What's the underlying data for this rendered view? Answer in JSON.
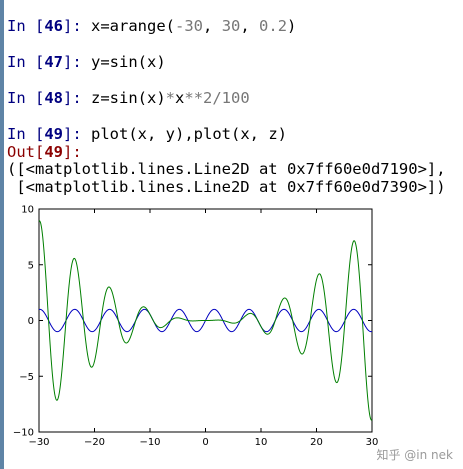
{
  "cells": [
    {
      "id": 1,
      "prompt": "In [",
      "number": "46",
      "suffix": "]:",
      "code": [
        {
          "t": "x=arange(",
          "c": ""
        },
        {
          "t": "-30",
          "c": "lit"
        },
        {
          "t": ", ",
          "c": ""
        },
        {
          "t": "30",
          "c": "lit"
        },
        {
          "t": ", ",
          "c": ""
        },
        {
          "t": "0.2",
          "c": "lit"
        },
        {
          "t": ")",
          "c": ""
        }
      ]
    },
    {
      "id": 2,
      "prompt": "In [",
      "number": "47",
      "suffix": "]:",
      "code": [
        {
          "t": "y=sin(x)",
          "c": ""
        }
      ]
    },
    {
      "id": 3,
      "prompt": "In [",
      "number": "48",
      "suffix": "]:",
      "code": [
        {
          "t": "z=sin(x)",
          "c": ""
        },
        {
          "t": "*",
          "c": "lit"
        },
        {
          "t": "x",
          "c": ""
        },
        {
          "t": "**2/100",
          "c": "lit"
        }
      ]
    },
    {
      "id": 4,
      "prompt": "In [",
      "number": "49",
      "suffix": "]:",
      "code": [
        {
          "t": "plot(x, y),plot(x, z)",
          "c": ""
        }
      ]
    }
  ],
  "output": {
    "prompt": "Out[",
    "number": "49",
    "suffix": "]:",
    "lines": [
      "([<matplotlib.lines.Line2D at 0x7ff60e0d7190>],",
      " [<matplotlib.lines.Line2D at 0x7ff60e0d7390>])"
    ]
  },
  "chart_data": {
    "type": "line",
    "title": "",
    "xlabel": "",
    "ylabel": "",
    "xlim": [
      -30,
      30
    ],
    "ylim": [
      -10,
      10
    ],
    "x_ticks": [
      -30,
      -20,
      -10,
      0,
      10,
      20,
      30
    ],
    "y_ticks": [
      -10,
      -5,
      0,
      5,
      10
    ],
    "x_tick_labels": [
      "−30",
      "−20",
      "−10",
      "0",
      "10",
      "20",
      "30"
    ],
    "y_tick_labels": [
      "−10",
      "−5",
      "0",
      "5",
      "10"
    ],
    "x": {
      "start": -30,
      "stop": 30,
      "step": 0.2
    },
    "series": [
      {
        "expr": "sin(x)",
        "color": "#0000bf"
      },
      {
        "expr": "sin(x)*x**2/100",
        "color": "#007f00"
      }
    ],
    "grid": false,
    "legend": "none"
  },
  "watermark": "知乎 @in nek"
}
